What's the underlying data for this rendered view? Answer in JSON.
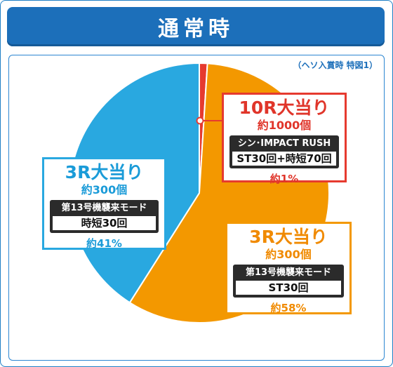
{
  "header": {
    "title": "通常時"
  },
  "source_note": "（ヘソ入賞時 特図1）",
  "chart_data": {
    "type": "pie",
    "title": "通常時",
    "slices": [
      {
        "label": "10R大当り",
        "value": 1,
        "color": "#e63a2f"
      },
      {
        "label": "3R大当り",
        "value": 58,
        "color": "#f39800"
      },
      {
        "label": "3R大当り",
        "value": 41,
        "color": "#29a8e0"
      }
    ]
  },
  "callouts": {
    "top": {
      "title": "10R大当り",
      "balls": "約1000個",
      "mode": "シン･IMPACT RUSH",
      "detail": "ST30回+時短70回",
      "percent": "約1%"
    },
    "right": {
      "title": "3R大当り",
      "balls": "約300個",
      "mode": "第13号機襲来モード",
      "detail": "ST30回",
      "percent": "約58%"
    },
    "left": {
      "title": "3R大当り",
      "balls": "約300個",
      "mode": "第13号機襲来モード",
      "detail": "時短30回",
      "percent": "約41%"
    }
  }
}
